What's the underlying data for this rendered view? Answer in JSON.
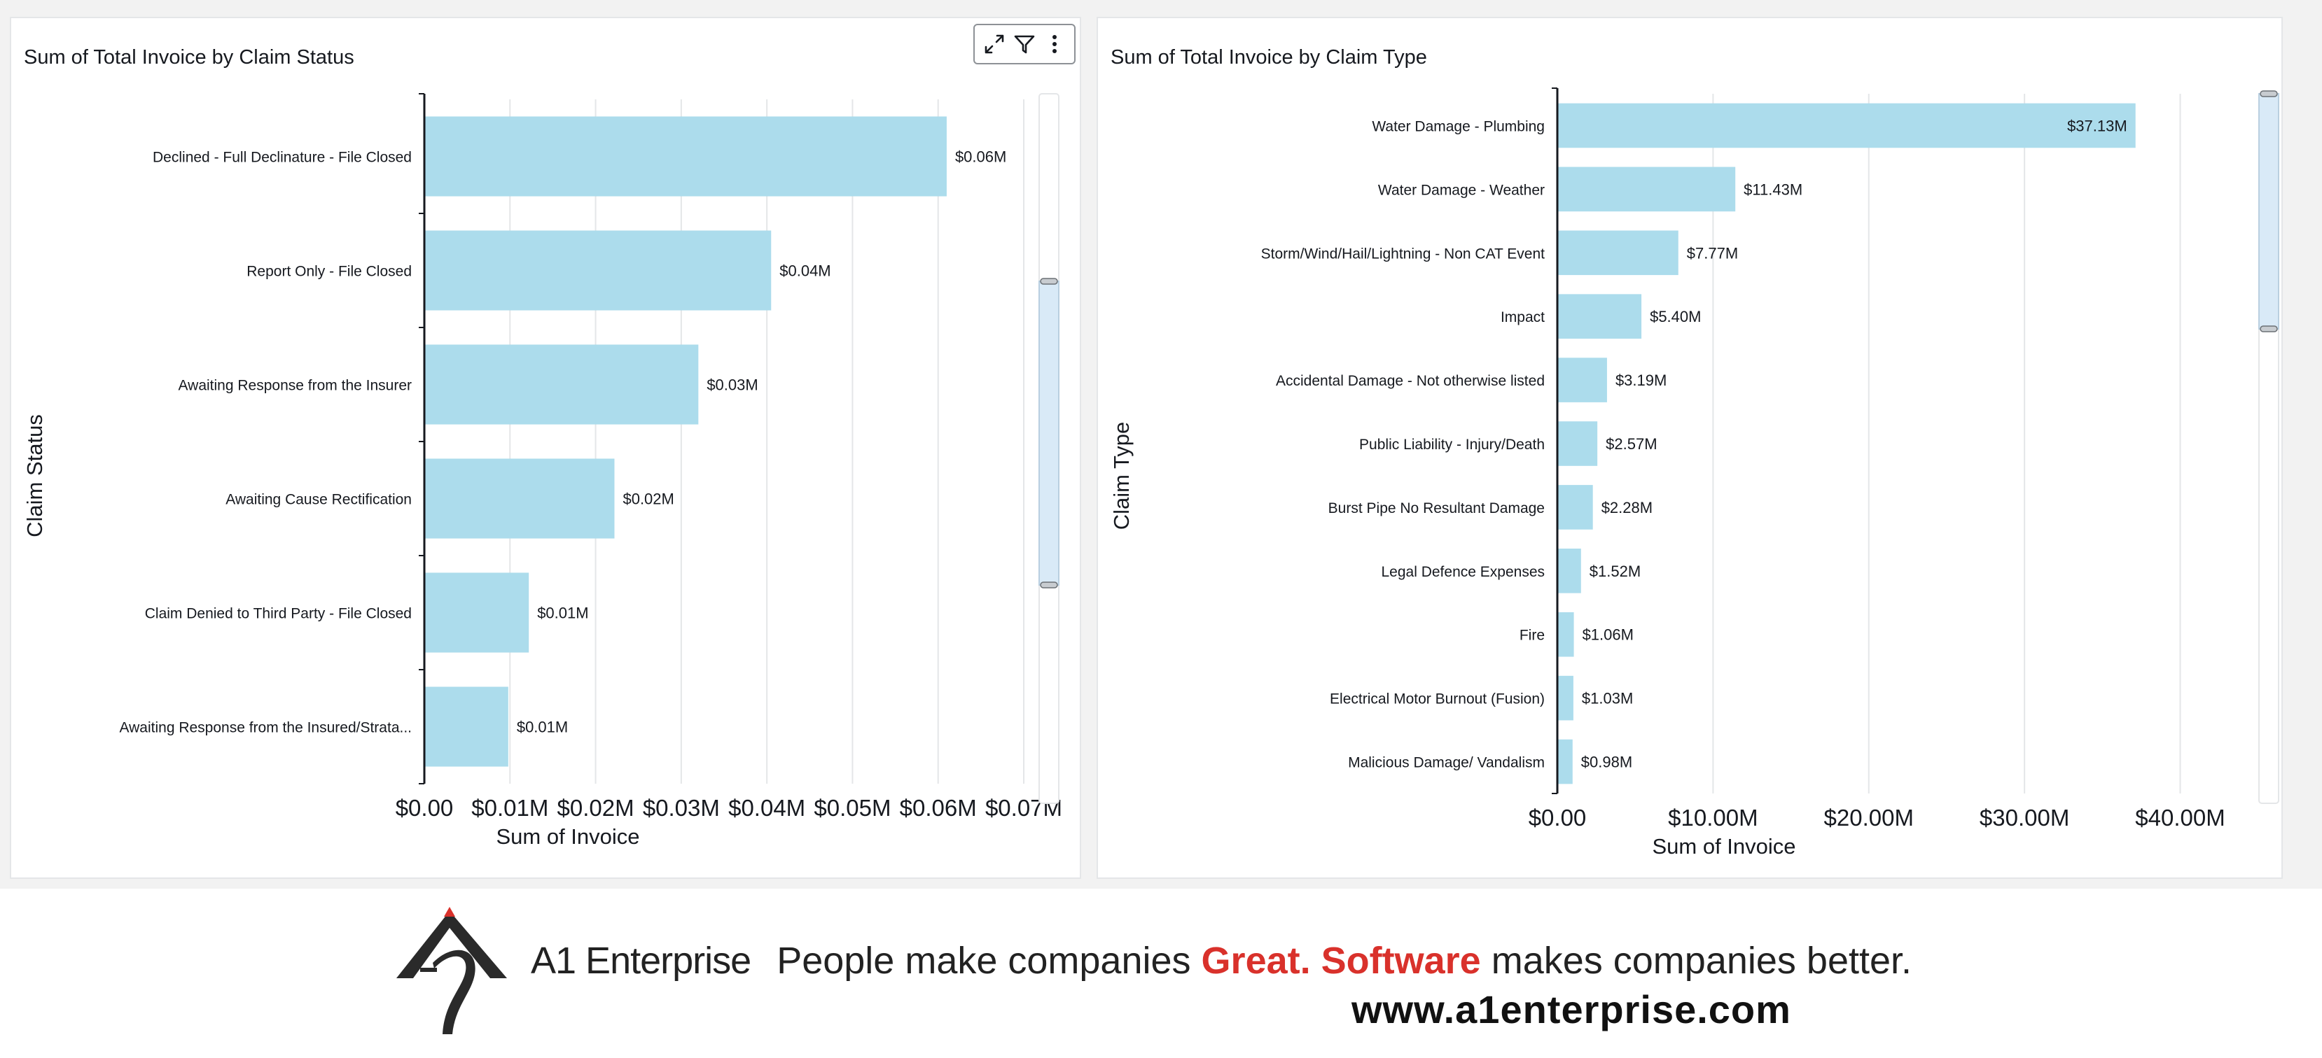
{
  "colors": {
    "bar": "#acdcec",
    "axis": "#16191f",
    "grid": "#e4e6e8",
    "scroll": "#d9eaf7",
    "accent_red": "#d9312b"
  },
  "toolbar": {
    "icons": [
      "expand-icon",
      "filter-icon",
      "more-icon"
    ]
  },
  "chart_data": [
    {
      "type": "bar",
      "orientation": "horizontal",
      "title": "Sum of Total Invoice by Claim Status",
      "xlabel": "Sum of Invoice",
      "ylabel": "Claim Status",
      "xlim": [
        0,
        0.07
      ],
      "xticks": [
        0,
        0.01,
        0.02,
        0.03,
        0.04,
        0.05,
        0.06,
        0.07
      ],
      "xtick_labels": [
        "$0.00",
        "$0.01M",
        "$0.02M",
        "$0.03M",
        "$0.04M",
        "$0.05M",
        "$0.06M",
        "$0.07M"
      ],
      "categories": [
        "Declined - Full Declinature - File Closed",
        "Report Only - File Closed",
        "Awaiting Response from the Insurer",
        "Awaiting Cause Rectification",
        "Claim Denied to Third Party - File Closed",
        "Awaiting Response from the Insured/Strata..."
      ],
      "values": [
        0.061,
        0.0405,
        0.032,
        0.0222,
        0.0122,
        0.0098
      ],
      "value_labels": [
        "$0.06M",
        "$0.04M",
        "$0.03M",
        "$0.02M",
        "$0.01M",
        "$0.01M"
      ],
      "grid": true
    },
    {
      "type": "bar",
      "orientation": "horizontal",
      "title": "Sum of Total Invoice by Claim Type",
      "xlabel": "Sum of Invoice",
      "ylabel": "Claim Type",
      "xlim": [
        0,
        42
      ],
      "xticks": [
        0,
        10,
        20,
        30,
        40
      ],
      "xtick_labels": [
        "$0.00",
        "$10.00M",
        "$20.00M",
        "$30.00M",
        "$40.00M"
      ],
      "categories": [
        "Water Damage - Plumbing",
        "Water Damage - Weather",
        "Storm/Wind/Hail/Lightning - Non CAT Event",
        "Impact",
        "Accidental Damage - Not otherwise listed",
        "Public Liability - Injury/Death",
        "Burst Pipe  No Resultant Damage",
        "Legal Defence Expenses",
        "Fire",
        "Electrical Motor Burnout (Fusion)",
        "Malicious Damage/ Vandalism"
      ],
      "values": [
        37.13,
        11.43,
        7.77,
        5.4,
        3.19,
        2.57,
        2.28,
        1.52,
        1.06,
        1.03,
        0.98
      ],
      "value_labels": [
        "$37.13M",
        "$11.43M",
        "$7.77M",
        "$5.40M",
        "$3.19M",
        "$2.57M",
        "$2.28M",
        "$1.52M",
        "$1.06M",
        "$1.03M",
        "$0.98M"
      ],
      "grid": true
    }
  ],
  "footer": {
    "brand": "A1 Enterprise",
    "tagline_pre": "People make companies",
    "tagline_great": "Great.",
    "tagline_software": "Software",
    "tagline_post": "makes companies better.",
    "website": "www.a1enterprise.com"
  }
}
